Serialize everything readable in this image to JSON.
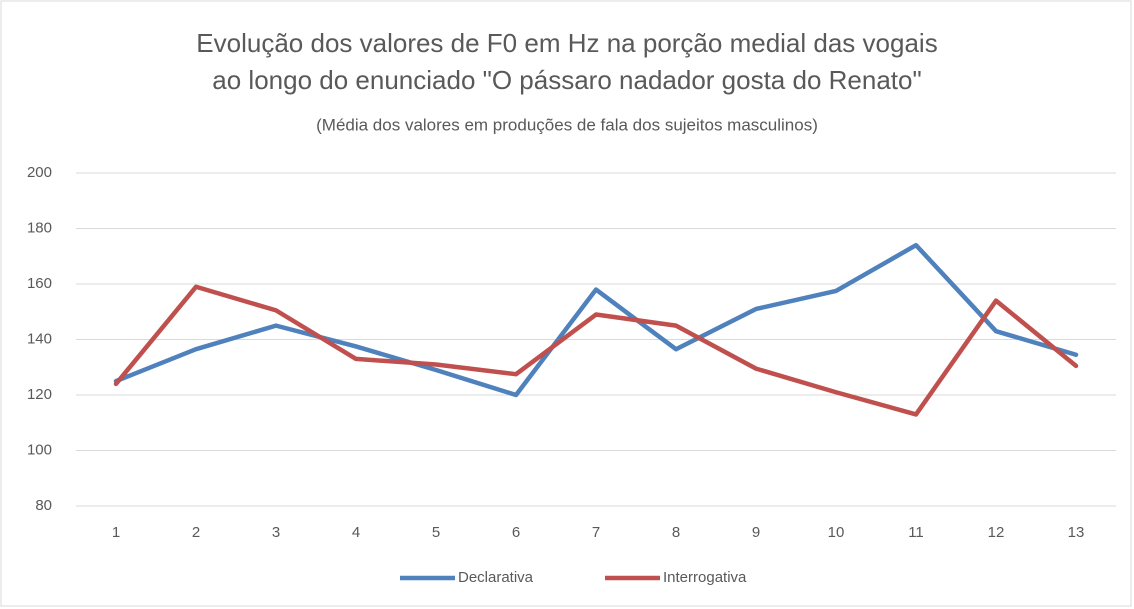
{
  "chart_data": {
    "type": "line",
    "title": [
      "Evolução dos valores  de F0  em Hz  na porção medial das  vogais",
      "ao longo do enunciado \"O pássaro nadador gosta do Renato\""
    ],
    "subtitle": "(Média dos valores  em produções de fala dos sujeitos  masculinos)",
    "categories": [
      "1",
      "2",
      "3",
      "4",
      "5",
      "6",
      "7",
      "8",
      "9",
      "10",
      "11",
      "12",
      "13"
    ],
    "series": [
      {
        "name": "Declarativa",
        "color": "#4f81bd",
        "values": [
          125,
          136.5,
          145,
          137.5,
          129,
          120,
          158,
          136.5,
          151,
          157.5,
          174,
          143,
          134.5
        ]
      },
      {
        "name": "Interrogativa",
        "color": "#c0504d",
        "values": [
          124,
          159,
          150.5,
          133,
          131,
          127.5,
          149,
          145,
          129.5,
          121,
          113,
          154,
          130.5
        ]
      }
    ],
    "ylim": [
      80,
      200
    ],
    "yticks": [
      80,
      100,
      120,
      140,
      160,
      180,
      200
    ],
    "grid": true,
    "legend": "bottom"
  }
}
